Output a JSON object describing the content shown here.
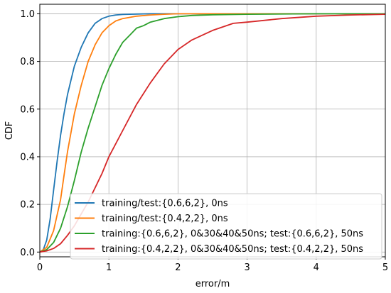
{
  "chart_data": {
    "type": "line",
    "title": "",
    "xlabel": "error/m",
    "ylabel": "CDF",
    "xlim": [
      0,
      5
    ],
    "ylim": [
      -0.02,
      1.04
    ],
    "xticks": [
      0,
      1,
      2,
      3,
      4,
      5
    ],
    "xtick_labels": [
      "0",
      "1",
      "2",
      "3",
      "4",
      "5"
    ],
    "yticks": [
      0.0,
      0.2,
      0.4,
      0.6,
      0.8,
      1.0
    ],
    "ytick_labels": [
      "0.0",
      "0.2",
      "0.4",
      "0.6",
      "0.8",
      "1.0"
    ],
    "grid": true,
    "legend_position": "bottom-right",
    "series": [
      {
        "name": "training/test:{0.6,6,2}, 0ns",
        "color": "#1f77b4",
        "x": [
          0,
          0.05,
          0.1,
          0.15,
          0.2,
          0.25,
          0.3,
          0.35,
          0.4,
          0.45,
          0.5,
          0.6,
          0.7,
          0.8,
          0.9,
          1.0,
          1.1,
          1.2,
          1.4,
          1.6,
          2.0,
          3.0,
          5.0
        ],
        "y": [
          0,
          0.01,
          0.05,
          0.14,
          0.26,
          0.38,
          0.49,
          0.58,
          0.66,
          0.72,
          0.78,
          0.86,
          0.92,
          0.96,
          0.98,
          0.99,
          0.995,
          0.997,
          0.999,
          1.0,
          1.0,
          1.0,
          1.0
        ]
      },
      {
        "name": "training/test:{0.4,2,2}, 0ns",
        "color": "#ff7f0e",
        "x": [
          0,
          0.1,
          0.2,
          0.3,
          0.35,
          0.4,
          0.5,
          0.6,
          0.7,
          0.8,
          0.9,
          1.0,
          1.1,
          1.2,
          1.4,
          1.6,
          1.8,
          2.0,
          2.5,
          3.0,
          5.0
        ],
        "y": [
          0,
          0.02,
          0.09,
          0.22,
          0.32,
          0.42,
          0.58,
          0.7,
          0.8,
          0.87,
          0.92,
          0.95,
          0.97,
          0.98,
          0.99,
          0.995,
          0.998,
          1.0,
          1.0,
          1.0,
          1.0
        ]
      },
      {
        "name": "training:{0.6,6,2}, 0&30&40&50ns; test:{0.6,6,2}, 50ns",
        "color": "#2ca02c",
        "x": [
          0,
          0.1,
          0.2,
          0.3,
          0.4,
          0.5,
          0.6,
          0.7,
          0.8,
          0.9,
          1.0,
          1.1,
          1.2,
          1.3,
          1.4,
          1.5,
          1.6,
          1.8,
          2.0,
          2.2,
          2.5,
          3.0,
          4.0,
          5.0
        ],
        "y": [
          0,
          0.01,
          0.04,
          0.1,
          0.19,
          0.3,
          0.42,
          0.52,
          0.61,
          0.7,
          0.77,
          0.83,
          0.88,
          0.91,
          0.94,
          0.95,
          0.965,
          0.98,
          0.988,
          0.993,
          0.996,
          0.998,
          1.0,
          1.0
        ]
      },
      {
        "name": "training:{0.4,2,2}, 0&30&40&50ns; test:{0.4,2,2}, 50ns",
        "color": "#d62728",
        "x": [
          0,
          0.1,
          0.2,
          0.3,
          0.4,
          0.5,
          0.6,
          0.7,
          0.8,
          0.9,
          1.0,
          1.2,
          1.4,
          1.6,
          1.8,
          2.0,
          2.2,
          2.5,
          2.8,
          3.0,
          3.5,
          4.0,
          4.5,
          5.0
        ],
        "y": [
          0,
          0.005,
          0.015,
          0.035,
          0.07,
          0.11,
          0.16,
          0.21,
          0.27,
          0.33,
          0.4,
          0.51,
          0.62,
          0.71,
          0.79,
          0.85,
          0.89,
          0.93,
          0.96,
          0.965,
          0.98,
          0.99,
          0.995,
          0.998
        ]
      }
    ]
  }
}
